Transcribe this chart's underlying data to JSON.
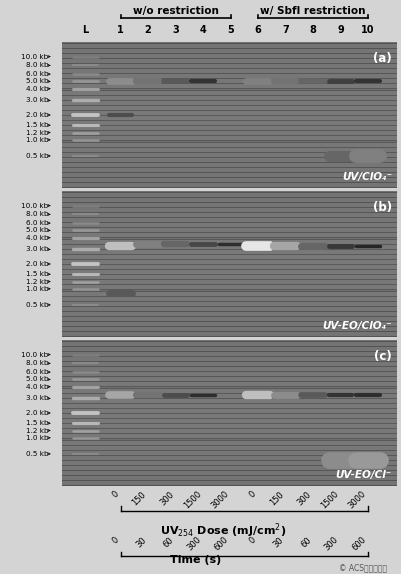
{
  "background_color": "#d4d4d4",
  "gel_bg_color": "#1a1a1a",
  "panel_labels": [
    "(a)",
    "(b)",
    "(c)"
  ],
  "panel_annotations": [
    "UV/ClO₄⁻",
    "UV-EO/ClO₄⁻",
    "UV-EO/Cl⁻"
  ],
  "header_wo": "w/o restriction",
  "header_w": "w/ Sbfl restriction",
  "lane_numbers": [
    "1",
    "2",
    "3",
    "4",
    "5",
    "6",
    "7",
    "8",
    "9",
    "10"
  ],
  "marker_labels": [
    "10.0 kb",
    "8.0 kb",
    "6.0 kb",
    "5.0 kb",
    "4.0 kb",
    "3.0 kb",
    "2.0 kb",
    "1.5 kb",
    "1.2 kb",
    "1.0 kb",
    "0.5 kb"
  ],
  "uv_dose_values": [
    "0",
    "150",
    "300",
    "1500",
    "3000",
    "0",
    "150",
    "300",
    "1500",
    "3000"
  ],
  "time_values": [
    "0",
    "30",
    "60",
    "300",
    "600",
    "0",
    "30",
    "60",
    "300",
    "600"
  ],
  "time_label": "Time (s)",
  "copyright": "© ACS美国化学会"
}
